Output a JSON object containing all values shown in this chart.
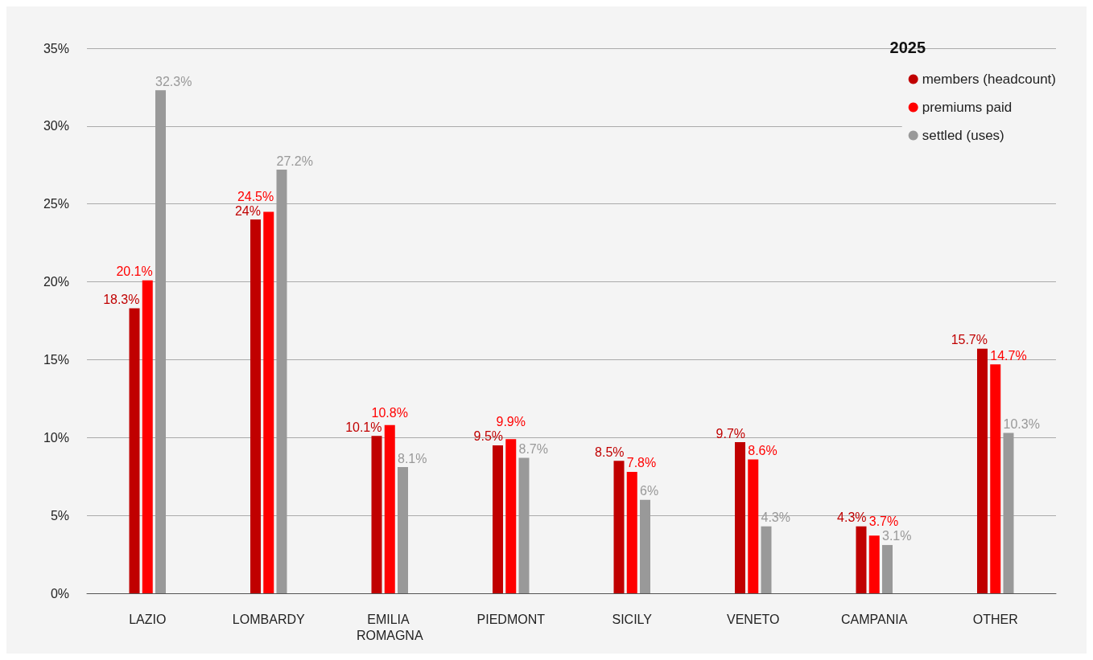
{
  "chart_data": {
    "type": "bar",
    "legend_title": "2025",
    "categories": [
      "LAZIO",
      "LOMBARDY",
      "EMILIA ROMAGNA",
      "PIEDMONT",
      "SICILY",
      "VENETO",
      "CAMPANIA",
      "OTHER"
    ],
    "series": [
      {
        "name": "members (headcount)",
        "color": "#c00000",
        "values": [
          18.3,
          24,
          10.1,
          9.5,
          8.5,
          9.7,
          4.3,
          15.7
        ],
        "value_labels": [
          "18.3%",
          "24%",
          "10.1%",
          "9.5%",
          "8.5%",
          "9.7%",
          "4.3%",
          "15.7%"
        ]
      },
      {
        "name": "premiums paid",
        "color": "#ff0000",
        "values": [
          20.1,
          24.5,
          10.8,
          9.9,
          7.8,
          8.6,
          3.7,
          14.7
        ],
        "value_labels": [
          "20.1%",
          "24.5%",
          "10.8%",
          "9.9%",
          "7.8%",
          "8.6%",
          "3.7%",
          "14.7%"
        ]
      },
      {
        "name": "settled (uses)",
        "color": "#999999",
        "values": [
          32.3,
          27.2,
          8.1,
          8.7,
          6,
          4.3,
          3.1,
          10.3
        ],
        "value_labels": [
          "32.3%",
          "27.2%",
          "8.1%",
          "8.7%",
          "6%",
          "4.3%",
          "3.1%",
          "10.3%"
        ]
      }
    ],
    "ylim": [
      0,
      35
    ],
    "yticks": [
      {
        "value": 0,
        "label": "0%"
      },
      {
        "value": 5,
        "label": "5%"
      },
      {
        "value": 10,
        "label": "10%"
      },
      {
        "value": 15,
        "label": "15%"
      },
      {
        "value": 20,
        "label": "20%"
      },
      {
        "value": 25,
        "label": "25%"
      },
      {
        "value": 30,
        "label": "30%"
      },
      {
        "value": 35,
        "label": "35%"
      }
    ],
    "grid": "y",
    "legend": "top right"
  }
}
